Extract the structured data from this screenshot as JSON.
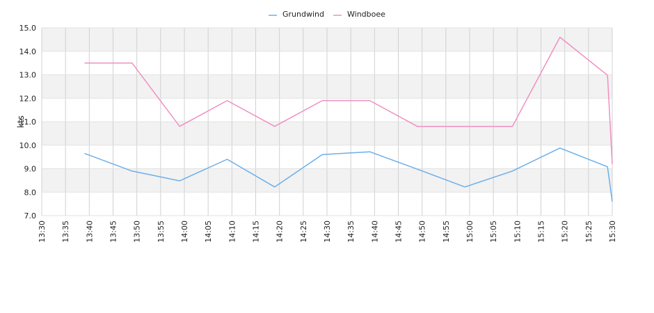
{
  "chart_data": {
    "type": "line",
    "title": "",
    "xlabel": "",
    "ylabel": "kts",
    "x_ticks": [
      "13:30",
      "13:35",
      "13:40",
      "13:45",
      "13:50",
      "13:55",
      "14:00",
      "14:05",
      "14:10",
      "14:15",
      "14:20",
      "14:25",
      "14:30",
      "14:35",
      "14:40",
      "14:45",
      "14:50",
      "14:55",
      "15:00",
      "15:05",
      "15:10",
      "15:15",
      "15:20",
      "15:25",
      "15:30"
    ],
    "x_range": [
      "13:30",
      "15:30"
    ],
    "ylim": [
      7.0,
      15.0
    ],
    "y_ticks": [
      "7.0",
      "8.0",
      "9.0",
      "10.0",
      "11.0",
      "12.0",
      "13.0",
      "14.0",
      "15.0"
    ],
    "grid": true,
    "legend_position": "top-center",
    "series": [
      {
        "name": "Grundwind",
        "color": "#6aaeea",
        "x": [
          "13:39",
          "13:49",
          "13:59",
          "14:09",
          "14:19",
          "14:29",
          "14:39",
          "14:49",
          "14:59",
          "15:09",
          "15:19",
          "15:29",
          "15:30"
        ],
        "values": [
          9.65,
          8.9,
          8.48,
          9.4,
          8.22,
          9.6,
          9.72,
          8.98,
          8.22,
          8.9,
          9.88,
          9.08,
          7.6
        ]
      },
      {
        "name": "Windboee",
        "color": "#f08fc0",
        "x": [
          "13:39",
          "13:49",
          "13:59",
          "14:09",
          "14:19",
          "14:29",
          "14:39",
          "14:49",
          "14:59",
          "15:09",
          "15:19",
          "15:29",
          "15:30"
        ],
        "values": [
          13.5,
          13.5,
          10.8,
          11.9,
          10.8,
          11.9,
          11.9,
          10.8,
          10.8,
          10.8,
          14.6,
          12.98,
          9.2
        ]
      }
    ]
  }
}
